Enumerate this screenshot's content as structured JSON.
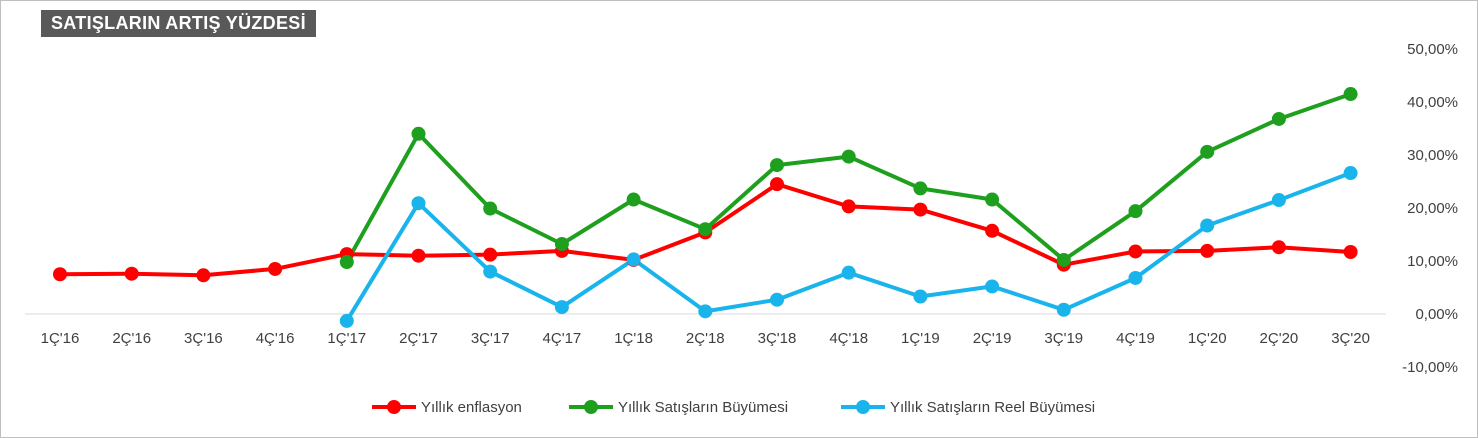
{
  "chart_data": {
    "type": "line",
    "title": "SATIŞLARIN ARTIŞ YÜZDESİ",
    "categories": [
      "1Ç'16",
      "2Ç'16",
      "3Ç'16",
      "4Ç'16",
      "1Ç'17",
      "2Ç'17",
      "3Ç'17",
      "4Ç'17",
      "1Ç'18",
      "2Ç'18",
      "3Ç'18",
      "4Ç'18",
      "1Ç'19",
      "2Ç'19",
      "3Ç'19",
      "4Ç'19",
      "1Ç'20",
      "2Ç'20",
      "3Ç'20"
    ],
    "y_ticks": [
      "50,00%",
      "40,00%",
      "30,00%",
      "20,00%",
      "10,00%",
      "0,00%",
      "-10,00%"
    ],
    "ylim": [
      -10,
      50
    ],
    "y_axis_side": "right",
    "grid": false,
    "legend_position": "bottom",
    "series": [
      {
        "name": "Yıllık enflasyon",
        "color": "#ff0000",
        "values": [
          7.5,
          7.6,
          7.3,
          8.5,
          11.3,
          11.0,
          11.2,
          11.9,
          10.2,
          15.4,
          24.5,
          20.3,
          19.7,
          15.7,
          9.3,
          11.8,
          11.9,
          12.6,
          11.7
        ]
      },
      {
        "name": "Yıllık Satışların Büyümesi",
        "color": "#1ea01e",
        "values": [
          null,
          null,
          null,
          null,
          9.8,
          34.0,
          19.9,
          13.2,
          21.6,
          16.0,
          28.1,
          29.7,
          23.7,
          21.6,
          10.2,
          19.4,
          30.6,
          36.8,
          41.5
        ]
      },
      {
        "name": "Yıllık Satışların Reel Büyümesi",
        "color": "#19b4eb",
        "values": [
          null,
          null,
          null,
          null,
          -1.3,
          20.9,
          8.0,
          1.3,
          10.3,
          0.5,
          2.7,
          7.8,
          3.3,
          5.2,
          0.8,
          6.8,
          16.7,
          21.5,
          26.6
        ]
      }
    ]
  }
}
